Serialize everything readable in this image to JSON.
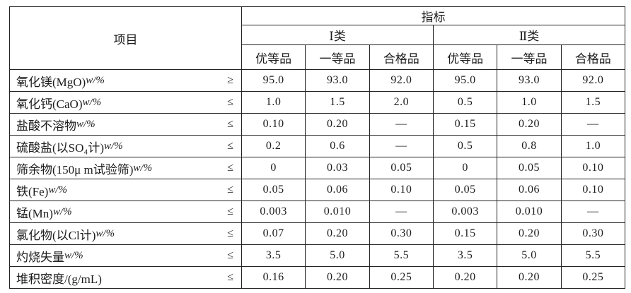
{
  "table": {
    "item_header": "项目",
    "index_header": "指标",
    "class_headers": [
      "Ⅰ类",
      "Ⅱ类"
    ],
    "grade_headers": [
      "优等品",
      "一等品",
      "合格品",
      "优等品",
      "一等品",
      "合格品"
    ],
    "rows": [
      {
        "item": "氧化镁(MgO)",
        "unit": "w/%",
        "relation": "≥",
        "values": [
          "95.0",
          "93.0",
          "92.0",
          "95.0",
          "93.0",
          "92.0"
        ]
      },
      {
        "item": "氧化钙(CaO)",
        "unit": "w/%",
        "relation": "≤",
        "values": [
          "1.0",
          "1.5",
          "2.0",
          "0.5",
          "1.0",
          "1.5"
        ]
      },
      {
        "item": "盐酸不溶物 ",
        "unit": "w/%",
        "relation": "≤",
        "values": [
          "0.10",
          "0.20",
          "—",
          "0.15",
          "0.20",
          "—"
        ]
      },
      {
        "item": "硫酸盐(以SO₄计)",
        "unit": "w/%",
        "relation": "≤",
        "values": [
          "0.2",
          "0.6",
          "—",
          "0.5",
          "0.8",
          "1.0"
        ]
      },
      {
        "item": "筛余物(150μ m试验筛)",
        "unit": "w/%",
        "relation": "≤",
        "values": [
          "0",
          "0.03",
          "0.05",
          "0",
          "0.05",
          "0.10"
        ]
      },
      {
        "item": "铁(Fe)",
        "unit": "w/%",
        "relation": "≤",
        "values": [
          "0.05",
          "0.06",
          "0.10",
          "0.05",
          "0.06",
          "0.10"
        ]
      },
      {
        "item": "锰(Mn)",
        "unit": "w/%",
        "relation": "≤",
        "values": [
          "0.003",
          "0.010",
          "—",
          "0.003",
          "0.010",
          "—"
        ]
      },
      {
        "item": "氯化物(以Cl计)",
        "unit": "w/%",
        "relation": "≤",
        "values": [
          "0.07",
          "0.20",
          "0.30",
          "0.15",
          "0.20",
          "0.30"
        ]
      },
      {
        "item": "灼烧失量",
        "unit": "w/%",
        "relation": "≤",
        "values": [
          "3.5",
          "5.0",
          "5.5",
          "3.5",
          "5.0",
          "5.5"
        ]
      },
      {
        "item": "堆积密度/(g/mL)",
        "unit": "",
        "relation": "≤",
        "values": [
          "0.16",
          "0.20",
          "0.25",
          "0.20",
          "0.20",
          "0.25"
        ]
      }
    ]
  }
}
